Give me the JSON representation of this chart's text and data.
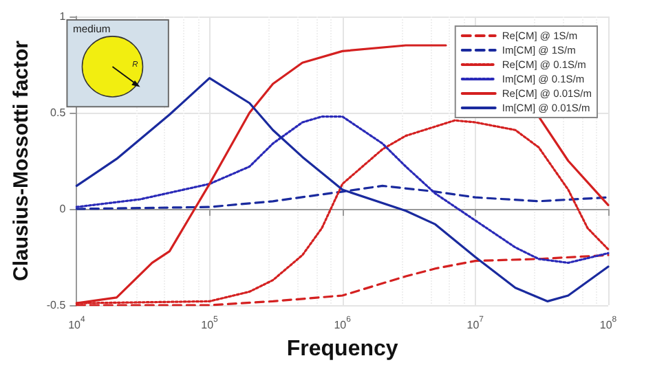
{
  "chart_data": {
    "type": "line",
    "xlabel": "Frequency",
    "ylabel": "Clausius-Mossotti factor",
    "log": "x",
    "xlim": [
      10000,
      100000000
    ],
    "ylim": [
      -0.5,
      1
    ],
    "xticks": [
      {
        "value": 10000,
        "label": "10$^{4}$"
      },
      {
        "value": 100000,
        "label": "10$^{5}$"
      },
      {
        "value": 1000000,
        "label": "10$^{6}$"
      },
      {
        "value": 10000000,
        "label": "10$^{7}$"
      },
      {
        "value": 100000000,
        "label": "10$^{8}$"
      }
    ],
    "yticks": [
      -0.5,
      0,
      0.5,
      1
    ],
    "grid": true,
    "legend": "top right",
    "marker": "none",
    "annotations": [
      "medium",
      "R"
    ],
    "series": [
      {
        "name": "Re[CM] @ 1S/m",
        "color": "#d42020",
        "line_style": "dashed",
        "x": [
          10000,
          100000,
          300000,
          1000000,
          3000000,
          5000000,
          10000000,
          30000000,
          100000000
        ],
        "values": [
          -0.5,
          -0.5,
          -0.48,
          -0.45,
          -0.35,
          -0.31,
          -0.27,
          -0.26,
          -0.24
        ]
      },
      {
        "name": "Im[CM] @ 1S/m",
        "color": "#1a2a9e",
        "line_style": "dashed",
        "x": [
          10000,
          100000,
          300000,
          1000000,
          2000000,
          5000000,
          10000000,
          30000000,
          100000000
        ],
        "values": [
          0,
          0.01,
          0.04,
          0.09,
          0.12,
          0.09,
          0.06,
          0.04,
          0.06
        ]
      },
      {
        "name": "Re[CM] @ 0.1S/m",
        "color": "#d42020",
        "line_style": "dotted",
        "x": [
          10000,
          100000,
          200000,
          300000,
          500000,
          700000,
          1000000,
          2000000,
          3000000,
          7000000,
          10000000,
          20000000,
          30000000,
          50000000,
          70000000,
          100000000
        ],
        "values": [
          -0.49,
          -0.48,
          -0.43,
          -0.37,
          -0.24,
          -0.1,
          0.13,
          0.31,
          0.38,
          0.46,
          0.45,
          0.41,
          0.32,
          0.1,
          -0.1,
          -0.21
        ]
      },
      {
        "name": "Im[CM] @ 0.1S/m",
        "color": "#2a2ab8",
        "line_style": "dotted",
        "x": [
          10000,
          30000,
          100000,
          200000,
          300000,
          500000,
          700000,
          1000000,
          2000000,
          3000000,
          5000000,
          10000000,
          20000000,
          30000000,
          50000000,
          100000000
        ],
        "values": [
          0.01,
          0.05,
          0.13,
          0.22,
          0.34,
          0.45,
          0.48,
          0.48,
          0.34,
          0.22,
          0.08,
          -0.06,
          -0.2,
          -0.26,
          -0.28,
          -0.23
        ]
      },
      {
        "name": "Re[CM] @ 0.01S/m",
        "color": "#d42020",
        "line_style": "solid",
        "x": [
          10000,
          20000,
          37000,
          50000,
          70000,
          100000,
          200000,
          300000,
          500000,
          1000000,
          3000000,
          6000000,
          10000000,
          20000000,
          30000000,
          50000000,
          100000000
        ],
        "values": [
          -0.49,
          -0.46,
          -0.28,
          -0.22,
          -0.05,
          0.13,
          0.5,
          0.65,
          0.76,
          0.82,
          0.85,
          0.85,
          null,
          null,
          0.48,
          0.25,
          0.02
        ]
      },
      {
        "name": "Im[CM] @ 0.01S/m",
        "color": "#1a2a9e",
        "line_style": "solid",
        "x": [
          10000,
          20000,
          50000,
          100000,
          200000,
          300000,
          500000,
          1000000,
          3000000,
          5000000,
          10000000,
          20000000,
          35000000,
          50000000,
          100000000
        ],
        "values": [
          0.12,
          0.26,
          0.49,
          0.68,
          0.55,
          0.41,
          0.27,
          0.1,
          -0.01,
          -0.08,
          -0.25,
          -0.41,
          -0.48,
          -0.45,
          -0.3
        ]
      }
    ]
  }
}
